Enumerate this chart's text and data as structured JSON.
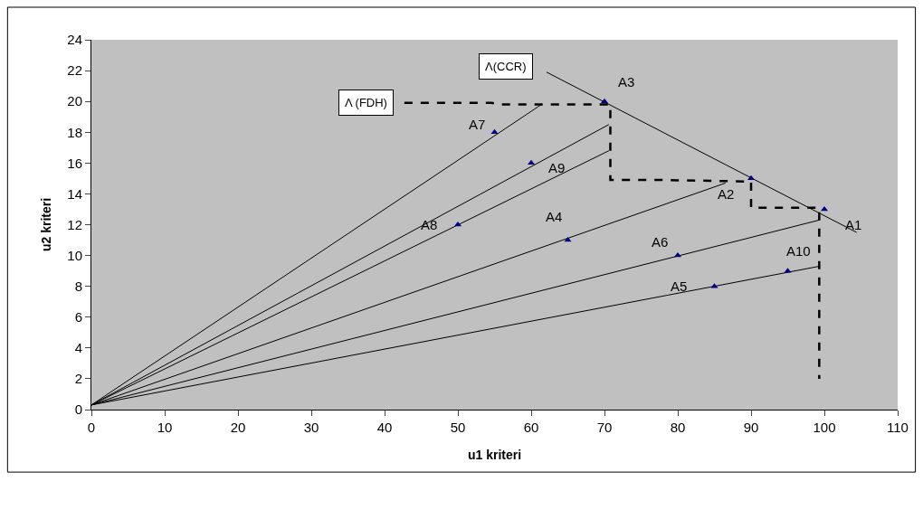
{
  "chart_data": {
    "type": "scatter",
    "xlabel": "u1 kriteri",
    "ylabel": "u2 kriteri",
    "xlim": [
      0,
      110
    ],
    "xticks": [
      0,
      10,
      20,
      30,
      40,
      50,
      60,
      70,
      80,
      90,
      100,
      110
    ],
    "ylim": [
      0,
      24
    ],
    "yticks": [
      0,
      2,
      4,
      6,
      8,
      10,
      12,
      14,
      16,
      18,
      20,
      22,
      24
    ],
    "grid": false,
    "series": [
      {
        "type": "line",
        "color": "#000000",
        "line_style": "solid",
        "marker": "none",
        "x": [
          0,
          61.4
        ],
        "values": [
          0.3,
          19.8
        ]
      },
      {
        "type": "line",
        "color": "#000000",
        "line_style": "solid",
        "marker": "none",
        "x": [
          0,
          70.6
        ],
        "values": [
          0.3,
          18.5
        ]
      },
      {
        "type": "line",
        "color": "#000000",
        "line_style": "solid",
        "marker": "none",
        "x": [
          0,
          70.6
        ],
        "values": [
          0.3,
          16.8
        ]
      },
      {
        "type": "line",
        "color": "#000000",
        "line_style": "solid",
        "marker": "none",
        "x": [
          0,
          86.5
        ],
        "values": [
          0.3,
          14.7
        ]
      },
      {
        "type": "line",
        "color": "#000000",
        "line_style": "solid",
        "marker": "none",
        "x": [
          0,
          99.3
        ],
        "values": [
          0.3,
          12.3
        ]
      },
      {
        "type": "line",
        "color": "#000000",
        "line_style": "solid",
        "marker": "none",
        "x": [
          0,
          99.3
        ],
        "values": [
          0.3,
          9.3
        ]
      },
      {
        "type": "line",
        "color": "#000000",
        "line_style": "solid",
        "marker": "none",
        "x": [
          62.1,
          104.4
        ],
        "values": [
          21.9,
          11.5
        ]
      },
      {
        "type": "line",
        "color": "#000000",
        "line_style": "dashed",
        "marker": "none",
        "x": [
          42.7,
          54.6,
          55.8,
          70.8,
          70.8,
          70.8,
          78,
          90,
          90,
          99.3,
          99.3,
          99.3
        ],
        "values": [
          19.9,
          19.9,
          19.8,
          19.8,
          19.8,
          14.9,
          14.9,
          14.8,
          13.1,
          13.1,
          9.5,
          2
        ]
      },
      {
        "color": "#000080",
        "marker": "triangle",
        "x": [
          100,
          90,
          70,
          65,
          85,
          80,
          55,
          50,
          60,
          95
        ],
        "values": [
          13,
          15,
          20,
          11,
          8,
          10,
          18,
          12,
          16,
          9
        ]
      }
    ],
    "annotations": [
      {
        "text": "Λ(CCR)",
        "x": 62.1,
        "y": 21.9
      },
      {
        "text": "Λ (FDH)",
        "x": 42.7,
        "y": 19.9
      },
      {
        "text": "A1",
        "x": 100,
        "y": 13
      },
      {
        "text": "A2",
        "x": 90,
        "y": 15
      },
      {
        "text": "A3",
        "x": 70,
        "y": 20
      },
      {
        "text": "A4",
        "x": 65,
        "y": 11
      },
      {
        "text": "A5",
        "x": 85,
        "y": 8
      },
      {
        "text": "A6",
        "x": 80,
        "y": 10
      },
      {
        "text": "A7",
        "x": 55,
        "y": 18
      },
      {
        "text": "A8",
        "x": 50,
        "y": 12
      },
      {
        "text": "A9",
        "x": 60,
        "y": 16
      },
      {
        "text": "A10",
        "x": 95,
        "y": 9
      }
    ]
  }
}
